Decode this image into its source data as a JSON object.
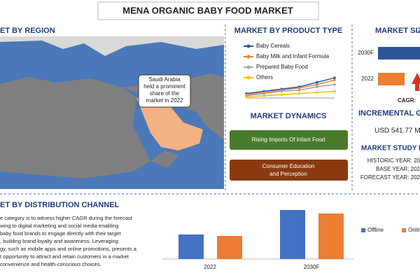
{
  "title": "MENA ORGANIC BABY FOOD MARKET",
  "region": {
    "heading": "ET BY REGION",
    "callout": [
      "Saudi Arabia",
      "held a prominent",
      "share of the",
      "market in 2022"
    ]
  },
  "product_type": {
    "heading": "MARKET BY PRODUCT TYPE"
  },
  "dynamics": {
    "heading": "MARKET DYNAMICS",
    "items": [
      "Rising Imports Of Infant Food",
      "Consumer Education",
      "and Perception"
    ]
  },
  "market_size": {
    "heading": "MARKET SIZ",
    "cagr": "CAGR:",
    "incremental_heading": "INCREMENTAL GRO",
    "incremental_value": "USD 541.77 M",
    "study_heading": "MARKET STUDY P",
    "study": [
      "HISTORIC YEAR: 20",
      "BASE YEAR: 202",
      "FORECAST YEAR: 202"
    ]
  },
  "distribution": {
    "heading": "ET BY DISTRIBUTION CHANNEL",
    "text": [
      "e category is to witness higher CAGR during the forecast",
      "wing to digital marketing and social media enabling",
      "baby food brands to engage directly with their target",
      ", building brand loyalty and awareness. Leveraging",
      "gy, such as mobile apps and online promotions, presents a",
      "t opportunity to attract and retain customers in a market",
      "convenience and health-conscious choices."
    ]
  },
  "chart_data": [
    {
      "type": "line",
      "x": [
        null,
        null,
        null,
        null,
        null,
        null
      ],
      "ylim": [
        0,
        10
      ],
      "series": [
        {
          "name": "Baby Cereals",
          "color": "#2e5597",
          "values": [
            2,
            3,
            4,
            5,
            7,
            9
          ]
        },
        {
          "name": "Baby Milk and Infant Formula",
          "color": "#ed7d31",
          "values": [
            1.5,
            2.5,
            3.5,
            4.5,
            6,
            8
          ]
        },
        {
          "name": "Prepared Baby Food",
          "color": "#a5a5a5",
          "values": [
            1,
            2,
            3,
            3.5,
            5,
            6
          ]
        },
        {
          "name": "Others",
          "color": "#ffc000",
          "values": [
            0.5,
            1,
            1.5,
            2,
            2.5,
            3
          ]
        }
      ]
    },
    {
      "type": "hbar",
      "categories": [
        "2030F",
        "2022"
      ],
      "values": [
        95,
        38
      ],
      "colors": [
        "#2e5597",
        "#ed7d31"
      ],
      "xlim": [
        0,
        100
      ]
    },
    {
      "type": "bar",
      "categories": [
        "2022",
        "2030F"
      ],
      "ylim": [
        0,
        80
      ],
      "series": [
        {
          "name": "Offline",
          "color": "#4472c4",
          "values": [
            35,
            70
          ]
        },
        {
          "name": "Online",
          "color": "#ed7d31",
          "values": [
            33,
            65
          ]
        }
      ]
    }
  ]
}
